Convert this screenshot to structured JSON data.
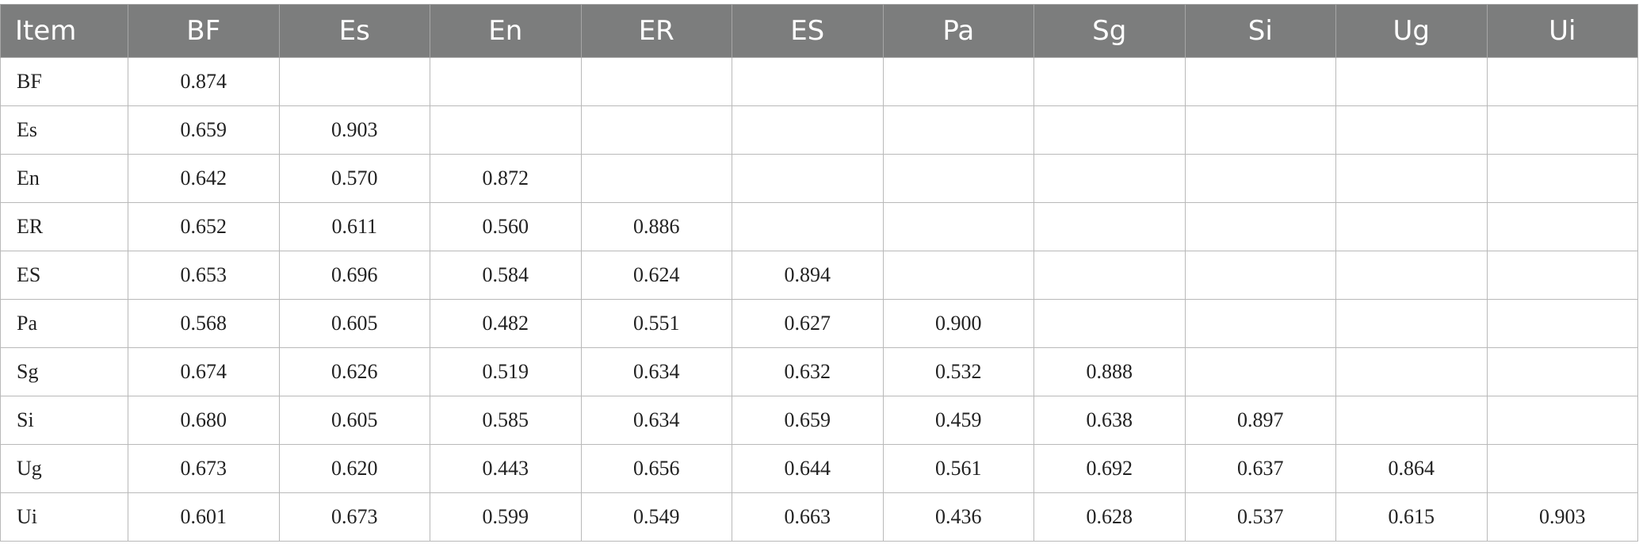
{
  "table": {
    "headers": [
      "Item",
      "BF",
      "Es",
      "En",
      "ER",
      "ES",
      "Pa",
      "Sg",
      "Si",
      "Ug",
      "Ui"
    ],
    "rows": [
      {
        "label": "BF",
        "values": [
          "0.874",
          "",
          "",
          "",
          "",
          "",
          "",
          "",
          "",
          ""
        ]
      },
      {
        "label": "Es",
        "values": [
          "0.659",
          "0.903",
          "",
          "",
          "",
          "",
          "",
          "",
          "",
          ""
        ]
      },
      {
        "label": "En",
        "values": [
          "0.642",
          "0.570",
          "0.872",
          "",
          "",
          "",
          "",
          "",
          "",
          ""
        ]
      },
      {
        "label": "ER",
        "values": [
          "0.652",
          "0.611",
          "0.560",
          "0.886",
          "",
          "",
          "",
          "",
          "",
          ""
        ]
      },
      {
        "label": "ES",
        "values": [
          "0.653",
          "0.696",
          "0.584",
          "0.624",
          "0.894",
          "",
          "",
          "",
          "",
          ""
        ]
      },
      {
        "label": "Pa",
        "values": [
          "0.568",
          "0.605",
          "0.482",
          "0.551",
          "0.627",
          "0.900",
          "",
          "",
          "",
          ""
        ]
      },
      {
        "label": "Sg",
        "values": [
          "0.674",
          "0.626",
          "0.519",
          "0.634",
          "0.632",
          "0.532",
          "0.888",
          "",
          "",
          ""
        ]
      },
      {
        "label": "Si",
        "values": [
          "0.680",
          "0.605",
          "0.585",
          "0.634",
          "0.659",
          "0.459",
          "0.638",
          "0.897",
          "",
          ""
        ]
      },
      {
        "label": "Ug",
        "values": [
          "0.673",
          "0.620",
          "0.443",
          "0.656",
          "0.644",
          "0.561",
          "0.692",
          "0.637",
          "0.864",
          ""
        ]
      },
      {
        "label": "Ui",
        "values": [
          "0.601",
          "0.673",
          "0.599",
          "0.549",
          "0.663",
          "0.436",
          "0.628",
          "0.537",
          "0.615",
          "0.903"
        ]
      }
    ]
  }
}
